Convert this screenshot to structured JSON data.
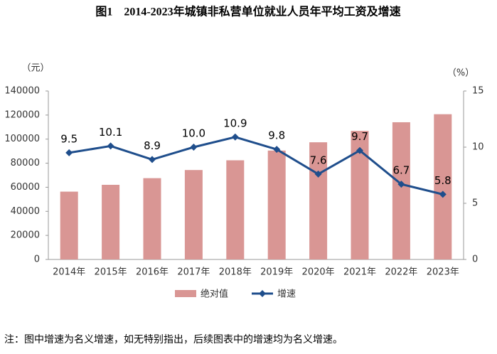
{
  "chart_data": {
    "type": "bar_line",
    "title": "图1　2014-2023年城镇非私营单位就业人员年平均工资及增速",
    "y_unit_label": "（元）",
    "y2_unit_label": "（%）",
    "categories": [
      "2014年",
      "2015年",
      "2016年",
      "2017年",
      "2018年",
      "2019年",
      "2020年",
      "2021年",
      "2022年",
      "2023年"
    ],
    "series": [
      {
        "name": "绝对值",
        "type": "bar",
        "color": "#d99694",
        "values": [
          56360,
          62029,
          67569,
          74318,
          82413,
          90501,
          97379,
          106837,
          114029,
          120698
        ]
      },
      {
        "name": "增速",
        "type": "line",
        "color": "#1f4e8c",
        "axis": "y2",
        "values": [
          9.5,
          10.1,
          8.9,
          10.0,
          10.9,
          9.8,
          7.6,
          9.7,
          6.7,
          5.8
        ],
        "value_labels": [
          "9.5",
          "10.1",
          "8.9",
          "10.0",
          "10.9",
          "9.8",
          "7.6",
          "9.7",
          "6.7",
          "5.8"
        ]
      }
    ],
    "ylim": [
      0,
      140000
    ],
    "yticks": [
      0,
      20000,
      40000,
      60000,
      80000,
      100000,
      120000,
      140000
    ],
    "y2lim": [
      0,
      15
    ],
    "y2ticks": [
      0,
      5,
      10,
      15
    ],
    "legend": "bottom",
    "note": "注：图中增速为名义增速，如无特别指出，后续图表中的增速均为名义增速。"
  }
}
